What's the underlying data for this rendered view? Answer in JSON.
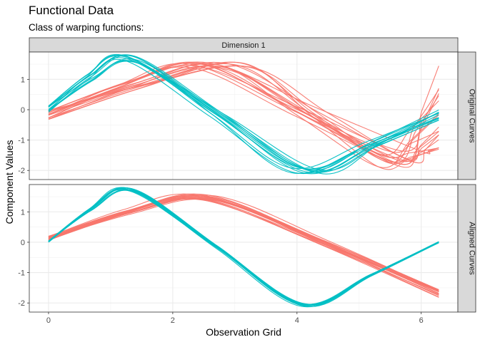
{
  "chart_data": {
    "type": "line",
    "title": "Functional Data",
    "subtitle": "Class of warping functions:",
    "xlabel": "Observation Grid",
    "ylabel": "Component Values",
    "facet_column": "Dimension 1",
    "xlim": [
      -0.31,
      6.59
    ],
    "ylim": [
      -2.3,
      1.9
    ],
    "x_ticks": [
      0,
      2,
      4,
      6
    ],
    "y_ticks": [
      -2,
      -1,
      0,
      1
    ],
    "grid": true,
    "legend": "none",
    "colors": {
      "red": "#F8766D",
      "teal": "#00BFC4"
    },
    "panels": [
      {
        "label": "Original Curves",
        "red_family": {
          "count": 18,
          "x_start": 0,
          "x_end": 6.283,
          "y_start": [
            -0.35,
            -0.02
          ],
          "peak_x": [
            2.2,
            3.3
          ],
          "peak_y": [
            1.35,
            1.55
          ],
          "trough_x": [
            5.3,
            6.0
          ],
          "trough_y": [
            -1.9,
            -1.3
          ],
          "y_end": [
            -1.4,
            1.5
          ]
        },
        "teal_family": {
          "count": 12,
          "x_start": 0,
          "x_end": 6.283,
          "y_start": [
            -0.1,
            0.15
          ],
          "peak_x": [
            1.2,
            1.45
          ],
          "peak_y": [
            1.55,
            1.78
          ],
          "trough_x": [
            3.9,
            4.4
          ],
          "trough_y": [
            -2.1,
            -1.9
          ],
          "y_end": [
            -0.4,
            0.02
          ]
        }
      },
      {
        "label": "Aligned Curves",
        "red_family": {
          "count": 18,
          "x_start": 0,
          "x_end": 6.283,
          "y_start": [
            0.06,
            0.22
          ],
          "peak_x": [
            2.4,
            2.7
          ],
          "peak_y": [
            1.38,
            1.58
          ],
          "y_end": [
            -1.83,
            -1.55
          ]
        },
        "teal_family": {
          "count": 12,
          "x_start": 0,
          "x_end": 6.283,
          "y_start": [
            0.0,
            0.05
          ],
          "peak_x": [
            1.3,
            1.4
          ],
          "peak_y": [
            1.66,
            1.78
          ],
          "trough_x": [
            4.05,
            4.15
          ],
          "trough_y": [
            -2.12,
            -2.02
          ],
          "y_end": [
            -0.02,
            0.02
          ]
        }
      }
    ]
  }
}
